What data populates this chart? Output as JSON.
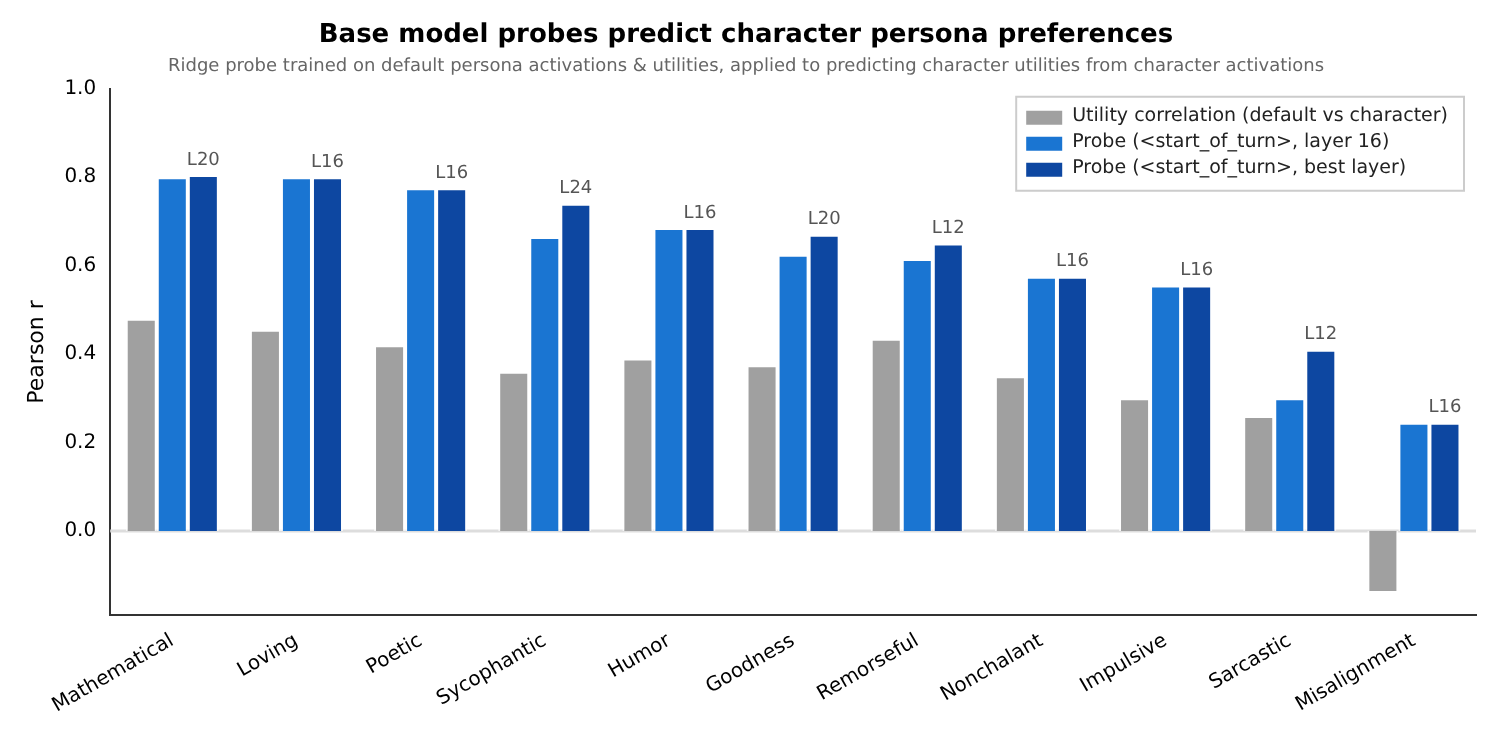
{
  "chart_data": {
    "type": "bar",
    "title": "Base model probes predict character persona preferences",
    "subtitle": "Ridge probe trained on default persona activations & utilities, applied to predicting character utilities from character activations",
    "ylabel": "Pearson r",
    "categories": [
      "Mathematical",
      "Loving",
      "Poetic",
      "Sycophantic",
      "Humor",
      "Goodness",
      "Remorseful",
      "Nonchalant",
      "Impulsive",
      "Sarcastic",
      "Misalignment"
    ],
    "series": [
      {
        "name": "Utility correlation (default vs character)",
        "color": "#a0a0a0",
        "values": [
          0.48,
          0.455,
          0.42,
          0.36,
          0.39,
          0.375,
          0.435,
          0.35,
          0.3,
          0.26,
          -0.14
        ]
      },
      {
        "name": "Probe (<start_of_turn>, layer 16)",
        "color": "#1a75d2",
        "values": [
          0.8,
          0.8,
          0.775,
          0.665,
          0.685,
          0.625,
          0.615,
          0.575,
          0.555,
          0.3,
          0.245
        ]
      },
      {
        "name": "Probe (<start_of_turn>, best layer)",
        "color": "#0d47a1",
        "values": [
          0.805,
          0.8,
          0.775,
          0.74,
          0.685,
          0.67,
          0.65,
          0.575,
          0.555,
          0.41,
          0.245
        ],
        "value_labels": [
          "L20",
          "L16",
          "L16",
          "L24",
          "L16",
          "L20",
          "L12",
          "L16",
          "L16",
          "L12",
          "L16"
        ]
      }
    ],
    "ylim": [
      -0.19,
      1.0
    ],
    "yticks": [
      {
        "value": 0,
        "label": "0.0"
      },
      {
        "value": 0.2,
        "label": "0.2"
      },
      {
        "value": 0.4,
        "label": "0.4"
      },
      {
        "value": 0.6,
        "label": "0.6"
      },
      {
        "value": 0.8,
        "label": "0.8"
      },
      {
        "value": 1,
        "label": "1.0"
      }
    ],
    "ref_lines": [
      {
        "axis": "y",
        "value": 0,
        "color": "#dddddd"
      }
    ],
    "grid": false,
    "legend": "top right"
  }
}
